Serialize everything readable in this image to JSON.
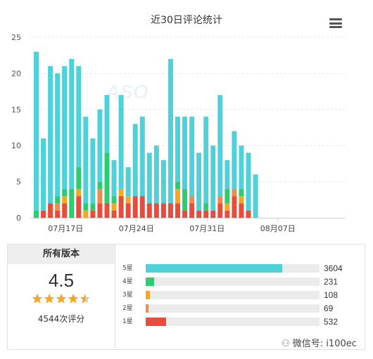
{
  "chart_data": {
    "type": "bar",
    "stacked": true,
    "title": "近30日评论统计",
    "ylim": [
      0,
      25
    ],
    "yticks": [
      "0",
      "5",
      "10",
      "15",
      "20",
      "25"
    ],
    "xtick_labels": [
      "07月17日",
      "07月24日",
      "07月31日",
      "08月07日"
    ],
    "grid": "horizontal dashed",
    "colors": {
      "1星": "#e84c3d",
      "2星": "#ef8b4e",
      "3星": "#f5a623",
      "4星": "#2ecc71",
      "5星": "#4fd1d9"
    },
    "series": [
      {
        "name": "1星",
        "values": [
          0,
          1,
          2,
          1,
          2,
          0,
          3,
          0,
          1,
          2,
          2,
          1,
          3,
          2,
          3,
          3,
          2,
          2,
          2,
          2,
          2,
          1,
          2,
          1,
          1,
          1,
          2,
          1,
          3,
          2,
          1,
          0
        ]
      },
      {
        "name": "2星",
        "values": [
          0,
          0,
          0,
          1,
          0,
          0,
          0,
          0,
          0,
          2,
          0,
          0,
          0,
          0,
          0,
          0,
          0,
          0,
          0,
          0,
          0,
          0,
          1,
          0,
          0,
          0,
          1,
          0,
          1,
          0,
          0,
          0
        ]
      },
      {
        "name": "3星",
        "values": [
          0,
          0,
          0,
          0,
          1,
          0,
          1,
          1,
          0,
          0,
          0,
          1,
          1,
          1,
          0,
          0,
          0,
          0,
          0,
          0,
          2,
          0,
          0,
          0,
          0,
          0,
          0,
          1,
          0,
          1,
          0,
          0
        ]
      },
      {
        "name": "4星",
        "values": [
          1,
          0,
          0,
          1,
          1,
          4,
          3,
          1,
          1,
          1,
          7,
          1,
          0,
          0,
          0,
          0,
          0,
          0,
          0,
          0,
          1,
          3,
          0,
          0,
          1,
          0,
          0,
          2,
          0,
          1,
          0,
          0
        ]
      },
      {
        "name": "5星",
        "values": [
          22,
          10,
          19,
          17,
          17,
          18,
          14,
          12,
          9,
          10,
          8,
          5,
          13,
          4,
          10,
          11,
          7,
          8,
          6,
          20,
          9,
          10,
          11,
          8,
          12,
          9,
          14,
          4,
          8,
          6,
          8,
          6
        ]
      }
    ]
  },
  "summary": {
    "header": "所有版本",
    "average": "4.5",
    "stars_value": 4.5,
    "total": "4544次评分",
    "rows": [
      {
        "label": "5星",
        "count": "3604",
        "value": 3604,
        "color": "#4fd1d9"
      },
      {
        "label": "4星",
        "count": "231",
        "value": 231,
        "color": "#2ecc71"
      },
      {
        "label": "3星",
        "count": "108",
        "value": 108,
        "color": "#f5a623"
      },
      {
        "label": "2星",
        "count": "69",
        "value": 69,
        "color": "#ef8b4e"
      },
      {
        "label": "1星",
        "count": "532",
        "value": 532,
        "color": "#e84c3d"
      }
    ]
  },
  "watermark": "微信号: i100ec"
}
